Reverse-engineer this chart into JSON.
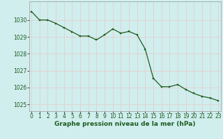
{
  "x": [
    0,
    1,
    2,
    3,
    4,
    5,
    6,
    7,
    8,
    9,
    10,
    11,
    12,
    13,
    14,
    15,
    16,
    17,
    18,
    19,
    20,
    21,
    22,
    23
  ],
  "y": [
    1030.5,
    1030.0,
    1030.0,
    1029.8,
    1029.55,
    1029.3,
    1029.05,
    1029.05,
    1028.82,
    1029.12,
    1029.47,
    1029.22,
    1029.32,
    1029.12,
    1028.28,
    1026.55,
    1026.05,
    1026.05,
    1026.18,
    1025.88,
    1025.65,
    1025.48,
    1025.38,
    1025.22
  ],
  "line_color": "#1e5c1e",
  "marker_color": "#1e5c1e",
  "bg_color": "#d0eeee",
  "grid_color_h": "#e8c8c8",
  "grid_color_v": "#e8c8c8",
  "ylabel_ticks": [
    1025,
    1026,
    1027,
    1028,
    1029,
    1030
  ],
  "xlabel_ticks": [
    0,
    1,
    2,
    3,
    4,
    5,
    6,
    7,
    8,
    9,
    10,
    11,
    12,
    13,
    14,
    15,
    16,
    17,
    18,
    19,
    20,
    21,
    22,
    23
  ],
  "xlabel": "Graphe pression niveau de la mer (hPa)",
  "ylim": [
    1024.6,
    1031.1
  ],
  "xlim": [
    -0.3,
    23.3
  ],
  "xlabel_fontsize": 6.5,
  "tick_fontsize": 5.5,
  "linewidth": 0.9,
  "markersize": 2.0
}
